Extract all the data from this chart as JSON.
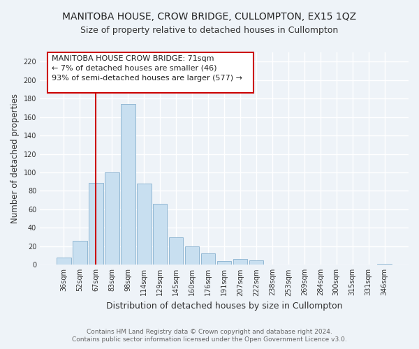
{
  "title": "MANITOBA HOUSE, CROW BRIDGE, CULLOMPTON, EX15 1QZ",
  "subtitle": "Size of property relative to detached houses in Cullompton",
  "xlabel": "Distribution of detached houses by size in Cullompton",
  "ylabel": "Number of detached properties",
  "bar_labels": [
    "36sqm",
    "52sqm",
    "67sqm",
    "83sqm",
    "98sqm",
    "114sqm",
    "129sqm",
    "145sqm",
    "160sqm",
    "176sqm",
    "191sqm",
    "207sqm",
    "222sqm",
    "238sqm",
    "253sqm",
    "269sqm",
    "284sqm",
    "300sqm",
    "315sqm",
    "331sqm",
    "346sqm"
  ],
  "bar_heights": [
    8,
    26,
    89,
    100,
    174,
    88,
    66,
    30,
    20,
    12,
    4,
    6,
    5,
    0,
    0,
    0,
    0,
    0,
    0,
    0,
    1
  ],
  "bar_color": "#c8dff0",
  "bar_edge_color": "#92b8d4",
  "vline_x_index": 2,
  "vline_color": "#cc0000",
  "ann_line1": "MANITOBA HOUSE CROW BRIDGE: 71sqm",
  "ann_line2": "← 7% of detached houses are smaller (46)",
  "ann_line3": "93% of semi-detached houses are larger (577) →",
  "annotation_box_edgecolor": "#cc0000",
  "annotation_box_facecolor": "#ffffff",
  "ylim": [
    0,
    230
  ],
  "yticks": [
    0,
    20,
    40,
    60,
    80,
    100,
    120,
    140,
    160,
    180,
    200,
    220
  ],
  "footer_line1": "Contains HM Land Registry data © Crown copyright and database right 2024.",
  "footer_line2": "Contains public sector information licensed under the Open Government Licence v3.0.",
  "background_color": "#eef3f8",
  "grid_color": "#ffffff",
  "title_fontsize": 10,
  "subtitle_fontsize": 9,
  "tick_fontsize": 7,
  "ylabel_fontsize": 8.5,
  "xlabel_fontsize": 9,
  "footer_fontsize": 6.5,
  "ann_fontsize": 8
}
